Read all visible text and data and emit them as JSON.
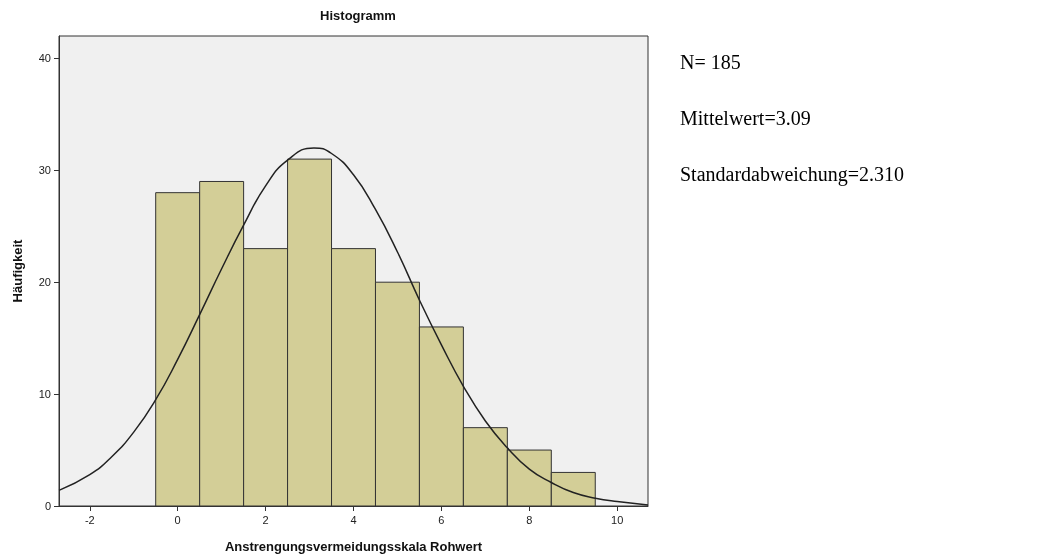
{
  "chart_data": {
    "type": "histogram",
    "title": "Histogramm",
    "xlabel": "Anstrengungsvermeidungsskala Rohwert",
    "ylabel": "Häufigkeit",
    "xlim": [
      -2.7,
      10.7
    ],
    "xticks": [
      -2,
      0,
      2,
      4,
      6,
      8,
      10
    ],
    "ylim": [
      0,
      42
    ],
    "yticks": [
      0,
      10,
      20,
      30,
      40
    ],
    "marker": "none",
    "series": [
      {
        "color": "#d3ce97",
        "bins": [
          -0.5,
          0.5,
          1.5,
          2.5,
          3.5,
          4.5,
          5.5,
          6.5,
          7.5,
          8.5,
          9.5
        ],
        "values": [
          28,
          29,
          23,
          31,
          23,
          20,
          16,
          7,
          5,
          3
        ]
      },
      {
        "type": "line",
        "color": "#222222",
        "x": [
          -2.7,
          -2,
          -1.5,
          -1,
          -0.5,
          0,
          0.5,
          1,
          1.5,
          2,
          2.5,
          3.1,
          3.5,
          4,
          4.5,
          5,
          5.5,
          6,
          6.5,
          7,
          7.5,
          8,
          8.5,
          9,
          9.5,
          10,
          10.7
        ],
        "values": [
          1.4,
          2.8,
          4.4,
          6.6,
          9.5,
          13.1,
          17.1,
          21.2,
          25.1,
          28.6,
          30.9,
          32,
          31.5,
          29.6,
          26.5,
          22.7,
          18.4,
          14.4,
          10.7,
          7.6,
          5.2,
          3.3,
          2.1,
          1.2,
          0.7,
          0.4,
          0.1
        ]
      }
    ],
    "annotations": [
      "N= 185",
      "Mittelwert=3.09",
      "Standardabweichung=2.310"
    ]
  }
}
